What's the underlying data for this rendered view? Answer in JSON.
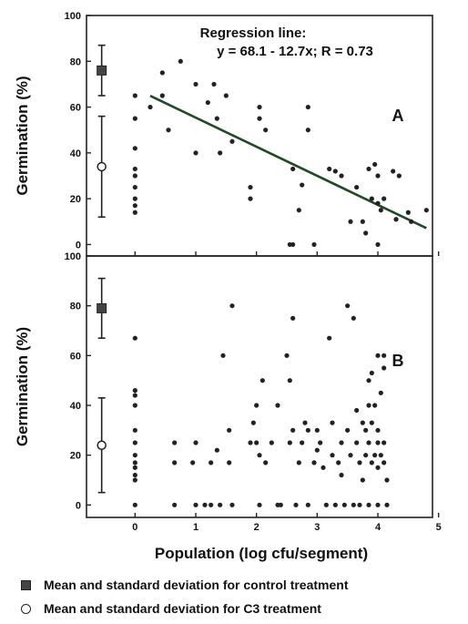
{
  "chart_data": [
    {
      "type": "scatter",
      "panel_label": "A",
      "annotation": [
        "Regression line:",
        "y = 68.1 - 12.7x; R = 0.73"
      ],
      "ylabel": "Germination (%)",
      "xlabel": "",
      "xlim": [
        -0.8,
        4.9
      ],
      "ylim": [
        -5,
        100
      ],
      "y_ticks": [
        "0",
        "20",
        "40",
        "60",
        "80",
        "100"
      ],
      "x_ticks": [],
      "grid": false,
      "regression": {
        "intercept": 68.1,
        "slope": -12.7,
        "x_range": [
          0.25,
          4.8
        ]
      },
      "treatment_markers": [
        {
          "marker": "square",
          "x": -0.55,
          "mean": 76,
          "sd_low": 65,
          "sd_high": 87
        },
        {
          "marker": "circle",
          "x": -0.55,
          "mean": 34,
          "sd_low": 12,
          "sd_high": 56
        }
      ],
      "points": [
        [
          0,
          65
        ],
        [
          0,
          55
        ],
        [
          0,
          42
        ],
        [
          0,
          33
        ],
        [
          0,
          30
        ],
        [
          0,
          25
        ],
        [
          0,
          20
        ],
        [
          0,
          17
        ],
        [
          0,
          14
        ],
        [
          0.25,
          60
        ],
        [
          0.45,
          75
        ],
        [
          0.45,
          65
        ],
        [
          0.55,
          50
        ],
        [
          0.75,
          80
        ],
        [
          1.0,
          40
        ],
        [
          1.0,
          70
        ],
        [
          1.2,
          62
        ],
        [
          1.3,
          70
        ],
        [
          1.35,
          55
        ],
        [
          1.4,
          40
        ],
        [
          1.5,
          65
        ],
        [
          1.6,
          45
        ],
        [
          1.9,
          25
        ],
        [
          1.9,
          20
        ],
        [
          2.05,
          60
        ],
        [
          2.05,
          55
        ],
        [
          2.15,
          50
        ],
        [
          2.55,
          0
        ],
        [
          2.6,
          0
        ],
        [
          2.6,
          33
        ],
        [
          2.7,
          15
        ],
        [
          2.75,
          26
        ],
        [
          2.85,
          60
        ],
        [
          2.85,
          50
        ],
        [
          2.95,
          0
        ],
        [
          3.2,
          33
        ],
        [
          3.3,
          32
        ],
        [
          3.4,
          30
        ],
        [
          3.55,
          10
        ],
        [
          3.65,
          25
        ],
        [
          3.75,
          10
        ],
        [
          3.8,
          5
        ],
        [
          3.85,
          33
        ],
        [
          3.9,
          20
        ],
        [
          3.95,
          35
        ],
        [
          4.0,
          30
        ],
        [
          4.0,
          18
        ],
        [
          4.0,
          0
        ],
        [
          4.05,
          15
        ],
        [
          4.1,
          20
        ],
        [
          4.25,
          32
        ],
        [
          4.3,
          11
        ],
        [
          4.35,
          30
        ],
        [
          4.5,
          14
        ],
        [
          4.55,
          10
        ],
        [
          4.8,
          15
        ]
      ]
    },
    {
      "type": "scatter",
      "panel_label": "B",
      "ylabel": "Germination (%)",
      "xlabel": "Population (log cfu/segment)",
      "xlim": [
        -0.8,
        4.9
      ],
      "ylim": [
        -5,
        100
      ],
      "y_ticks": [
        "0",
        "20",
        "40",
        "60",
        "80",
        "100"
      ],
      "x_ticks": [
        "0",
        "1",
        "2",
        "3",
        "4",
        "5"
      ],
      "grid": false,
      "treatment_markers": [
        {
          "marker": "square",
          "x": -0.55,
          "mean": 79,
          "sd_low": 67,
          "sd_high": 91
        },
        {
          "marker": "circle",
          "x": -0.55,
          "mean": 24,
          "sd_low": 5,
          "sd_high": 43
        }
      ],
      "points": [
        [
          0,
          67
        ],
        [
          0,
          46
        ],
        [
          0,
          44
        ],
        [
          0,
          40
        ],
        [
          0,
          30
        ],
        [
          0,
          25
        ],
        [
          0,
          20
        ],
        [
          0,
          17
        ],
        [
          0,
          15
        ],
        [
          0,
          12
        ],
        [
          0,
          10
        ],
        [
          0,
          0
        ],
        [
          0.65,
          25
        ],
        [
          0.65,
          17
        ],
        [
          0.65,
          0
        ],
        [
          0.95,
          17
        ],
        [
          1.0,
          25
        ],
        [
          1.0,
          0
        ],
        [
          1.15,
          0
        ],
        [
          1.25,
          17
        ],
        [
          1.25,
          0
        ],
        [
          1.35,
          22
        ],
        [
          1.4,
          0
        ],
        [
          1.45,
          60
        ],
        [
          1.55,
          30
        ],
        [
          1.55,
          17
        ],
        [
          1.6,
          80
        ],
        [
          1.6,
          0
        ],
        [
          1.9,
          25
        ],
        [
          1.95,
          33
        ],
        [
          2.0,
          40
        ],
        [
          2.0,
          25
        ],
        [
          2.05,
          20
        ],
        [
          2.05,
          0
        ],
        [
          2.1,
          50
        ],
        [
          2.15,
          17
        ],
        [
          2.25,
          25
        ],
        [
          2.35,
          40
        ],
        [
          2.35,
          0
        ],
        [
          2.4,
          0
        ],
        [
          2.5,
          60
        ],
        [
          2.55,
          50
        ],
        [
          2.55,
          25
        ],
        [
          2.6,
          75
        ],
        [
          2.6,
          30
        ],
        [
          2.65,
          0
        ],
        [
          2.7,
          17
        ],
        [
          2.75,
          25
        ],
        [
          2.8,
          33
        ],
        [
          2.85,
          30
        ],
        [
          2.85,
          0
        ],
        [
          2.95,
          17
        ],
        [
          3.0,
          30
        ],
        [
          3.0,
          22
        ],
        [
          3.05,
          25
        ],
        [
          3.1,
          15
        ],
        [
          3.15,
          0
        ],
        [
          3.2,
          67
        ],
        [
          3.25,
          33
        ],
        [
          3.25,
          20
        ],
        [
          3.3,
          0
        ],
        [
          3.35,
          17
        ],
        [
          3.4,
          25
        ],
        [
          3.4,
          12
        ],
        [
          3.45,
          0
        ],
        [
          3.5,
          80
        ],
        [
          3.5,
          30
        ],
        [
          3.55,
          20
        ],
        [
          3.6,
          75
        ],
        [
          3.6,
          0
        ],
        [
          3.65,
          25
        ],
        [
          3.7,
          17
        ],
        [
          3.7,
          0
        ],
        [
          3.75,
          10
        ],
        [
          3.8,
          30
        ],
        [
          3.8,
          20
        ],
        [
          3.85,
          50
        ],
        [
          3.85,
          40
        ],
        [
          3.85,
          25
        ],
        [
          3.85,
          0
        ],
        [
          3.9,
          53
        ],
        [
          3.9,
          33
        ],
        [
          3.9,
          17
        ],
        [
          3.95,
          40
        ],
        [
          3.95,
          20
        ],
        [
          4.0,
          60
        ],
        [
          4.0,
          30
        ],
        [
          4.0,
          25
        ],
        [
          4.0,
          15
        ],
        [
          4.0,
          0
        ],
        [
          4.05,
          45
        ],
        [
          4.05,
          20
        ],
        [
          4.1,
          55
        ],
        [
          4.1,
          60
        ],
        [
          4.1,
          25
        ],
        [
          4.1,
          17
        ],
        [
          4.15,
          10
        ],
        [
          4.15,
          0
        ],
        [
          3.75,
          33
        ],
        [
          3.65,
          38
        ]
      ]
    }
  ],
  "legend": [
    {
      "icon": "filled-square",
      "label": "Mean and standard deviation for control treatment"
    },
    {
      "icon": "open-circle",
      "label": "Mean and standard deviation  for C3 treatment"
    }
  ]
}
